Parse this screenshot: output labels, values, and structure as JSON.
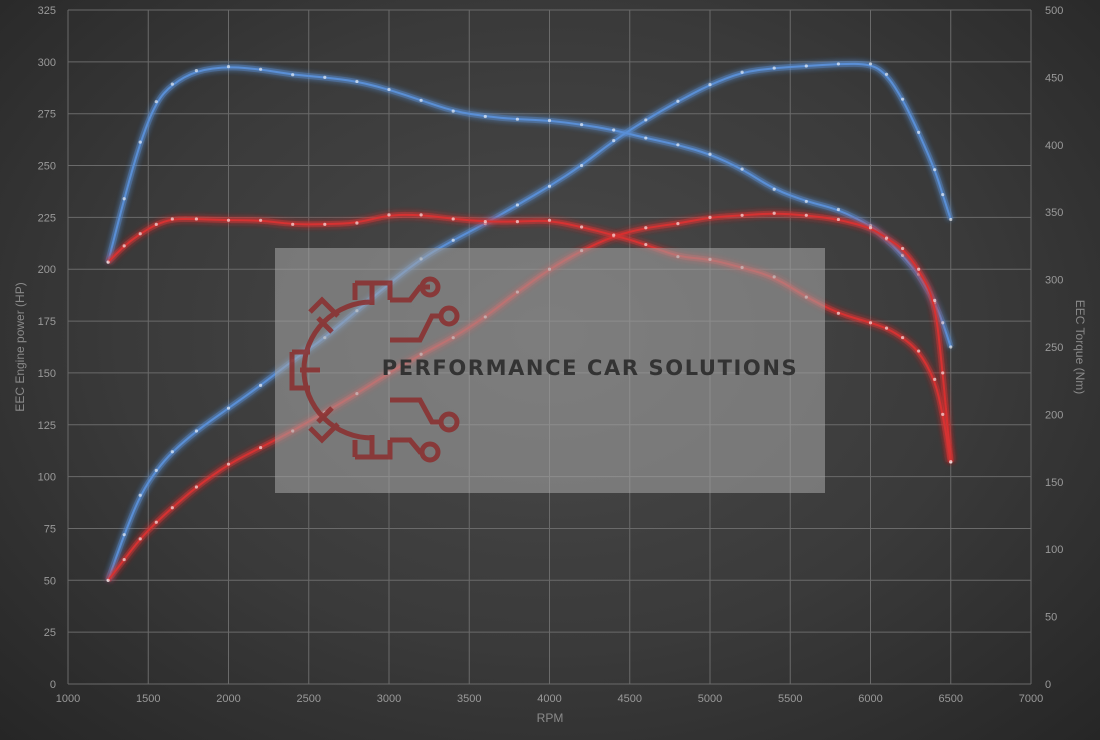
{
  "chart_data": {
    "type": "line",
    "xlabel": "RPM",
    "ylabel_left": "EEC Engine power (HP)",
    "ylabel_right": "EEC Torque (Nm)",
    "xlim": [
      1000,
      7000
    ],
    "ylim_left": [
      0,
      325
    ],
    "ylim_right": [
      0,
      500
    ],
    "x_ticks": [
      1000,
      1500,
      2000,
      2500,
      3000,
      3500,
      4000,
      4500,
      5000,
      5500,
      6000,
      6500,
      7000
    ],
    "y_ticks_left": [
      0,
      25,
      50,
      75,
      100,
      125,
      150,
      175,
      200,
      225,
      250,
      275,
      300,
      325
    ],
    "y_ticks_right": [
      0,
      50,
      100,
      150,
      200,
      250,
      300,
      350,
      400,
      450,
      500
    ],
    "grid": true,
    "legend": "none",
    "colors": {
      "tuned": "#5a8fd6",
      "stock": "#d63232",
      "grid": "#6a6a6a"
    },
    "series": [
      {
        "color": "#5a8fd6",
        "axis": "left",
        "x": [
          1250,
          1350,
          1450,
          1550,
          1650,
          1800,
          2000,
          2200,
          2400,
          2600,
          2800,
          3000,
          3200,
          3400,
          3600,
          3800,
          4000,
          4200,
          4400,
          4600,
          4800,
          5000,
          5200,
          5400,
          5600,
          5800,
          6000,
          6100,
          6200,
          6300,
          6400,
          6450,
          6500
        ],
        "y": [
          50,
          72,
          91,
          103,
          112,
          122,
          133,
          144,
          156,
          167,
          180,
          193,
          205,
          214,
          222,
          231,
          240,
          250,
          262,
          272,
          281,
          289,
          295,
          297,
          298,
          299,
          299,
          294,
          282,
          266,
          248,
          236,
          224
        ]
      },
      {
        "color": "#5a8fd6",
        "axis": "right",
        "x": [
          1250,
          1350,
          1450,
          1550,
          1650,
          1800,
          2000,
          2200,
          2400,
          2600,
          2800,
          3000,
          3200,
          3400,
          3600,
          3800,
          4000,
          4200,
          4400,
          4600,
          4800,
          5000,
          5200,
          5400,
          5600,
          5800,
          6000,
          6100,
          6200,
          6300,
          6400,
          6450,
          6500
        ],
        "y": [
          313,
          360,
          402,
          432,
          445,
          455,
          458,
          456,
          452,
          450,
          447,
          441,
          433,
          425,
          421,
          419,
          418,
          415,
          411,
          405,
          400,
          393,
          382,
          367,
          358,
          352,
          340,
          330,
          318,
          304,
          283,
          268,
          250
        ]
      },
      {
        "color": "#d63232",
        "axis": "left",
        "x": [
          1250,
          1350,
          1450,
          1550,
          1650,
          1800,
          2000,
          2200,
          2400,
          2600,
          2800,
          3000,
          3200,
          3400,
          3600,
          3800,
          4000,
          4200,
          4400,
          4600,
          4800,
          5000,
          5200,
          5400,
          5600,
          5800,
          6000,
          6100,
          6200,
          6300,
          6400,
          6450,
          6500
        ],
        "y": [
          50,
          60,
          70,
          78,
          85,
          95,
          106,
          114,
          122,
          131,
          140,
          150,
          159,
          167,
          177,
          189,
          200,
          209,
          216,
          220,
          222,
          225,
          226,
          227,
          226,
          224,
          220,
          215,
          210,
          200,
          185,
          150,
          107
        ]
      },
      {
        "color": "#d63232",
        "axis": "right",
        "x": [
          1250,
          1350,
          1450,
          1550,
          1650,
          1800,
          2000,
          2200,
          2400,
          2600,
          2800,
          3000,
          3200,
          3400,
          3600,
          3800,
          4000,
          4200,
          4400,
          4600,
          4800,
          5000,
          5200,
          5400,
          5600,
          5800,
          6000,
          6100,
          6200,
          6300,
          6400,
          6450,
          6500
        ],
        "y": [
          313,
          325,
          334,
          341,
          345,
          345,
          344,
          344,
          341,
          341,
          342,
          348,
          348,
          345,
          343,
          343,
          344,
          339,
          333,
          326,
          317,
          315,
          309,
          302,
          287,
          275,
          268,
          264,
          257,
          247,
          226,
          200,
          165
        ]
      }
    ]
  },
  "watermark": {
    "text": "PERFORMANCE CAR SOLUTIONS",
    "logo": "gear-circuit-icon",
    "logo_color": "#8b2e2e"
  }
}
